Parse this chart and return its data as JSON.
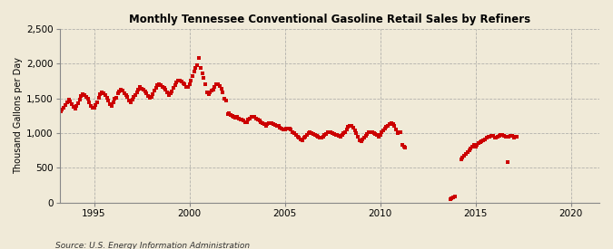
{
  "title": "Monthly Tennessee Conventional Gasoline Retail Sales by Refiners",
  "ylabel": "Thousand Gallons per Day",
  "source": "Source: U.S. Energy Information Administration",
  "background_color": "#f0ead8",
  "marker_color": "#cc0000",
  "xlim": [
    1993.2,
    2021.5
  ],
  "ylim": [
    0,
    2500
  ],
  "yticks": [
    0,
    500,
    1000,
    1500,
    2000,
    2500
  ],
  "xticks": [
    1995,
    2000,
    2005,
    2010,
    2015,
    2020
  ],
  "segments": [
    {
      "dates": [
        1993.25,
        1993.33,
        1993.42,
        1993.5,
        1993.58,
        1993.67,
        1993.75,
        1993.83,
        1993.92,
        1994.0,
        1994.08,
        1994.17,
        1994.25,
        1994.33,
        1994.42,
        1994.5,
        1994.58,
        1994.67,
        1994.75,
        1994.83,
        1994.92,
        1995.0,
        1995.08,
        1995.17,
        1995.25,
        1995.33,
        1995.42,
        1995.5,
        1995.58,
        1995.67,
        1995.75,
        1995.83,
        1995.92,
        1996.0,
        1996.08,
        1996.17,
        1996.25,
        1996.33,
        1996.42,
        1996.5,
        1996.58,
        1996.67,
        1996.75,
        1996.83,
        1996.92,
        1997.0,
        1997.08,
        1997.17,
        1997.25,
        1997.33,
        1997.42,
        1997.5,
        1997.58,
        1997.67,
        1997.75,
        1997.83,
        1997.92,
        1998.0,
        1998.08,
        1998.17,
        1998.25,
        1998.33,
        1998.42,
        1998.5,
        1998.58,
        1998.67,
        1998.75,
        1998.83,
        1998.92,
        1999.0,
        1999.08,
        1999.17,
        1999.25,
        1999.33,
        1999.42,
        1999.5,
        1999.58,
        1999.67,
        1999.75,
        1999.83,
        1999.92,
        2000.0,
        2000.08,
        2000.17,
        2000.25,
        2000.33,
        2000.42,
        2000.5,
        2000.58,
        2000.67,
        2000.75,
        2000.83,
        2000.92,
        2001.0,
        2001.08,
        2001.17,
        2001.25,
        2001.33,
        2001.42,
        2001.5,
        2001.58,
        2001.67,
        2001.75,
        2001.83,
        2001.92,
        2002.0,
        2002.08,
        2002.17,
        2002.25,
        2002.33,
        2002.42,
        2002.5,
        2002.58,
        2002.67,
        2002.75,
        2002.83,
        2002.92,
        2003.0,
        2003.08,
        2003.17,
        2003.25,
        2003.33,
        2003.42,
        2003.5,
        2003.58,
        2003.67,
        2003.75,
        2003.83,
        2003.92,
        2004.0,
        2004.08,
        2004.17,
        2004.25,
        2004.33,
        2004.42,
        2004.5,
        2004.58,
        2004.67,
        2004.75,
        2004.83,
        2004.92,
        2005.0,
        2005.08,
        2005.17,
        2005.25,
        2005.33,
        2005.42,
        2005.5,
        2005.58,
        2005.67,
        2005.75,
        2005.83,
        2005.92,
        2006.0,
        2006.08,
        2006.17,
        2006.25,
        2006.33,
        2006.42,
        2006.5,
        2006.58,
        2006.67,
        2006.75,
        2006.83,
        2006.92,
        2007.0,
        2007.08,
        2007.17,
        2007.25,
        2007.33,
        2007.42,
        2007.5,
        2007.58,
        2007.67,
        2007.75,
        2007.83,
        2007.92,
        2008.0,
        2008.08,
        2008.17,
        2008.25,
        2008.33,
        2008.42,
        2008.5,
        2008.58,
        2008.67,
        2008.75,
        2008.83,
        2008.92,
        2009.0,
        2009.08,
        2009.17,
        2009.25,
        2009.33,
        2009.42,
        2009.5,
        2009.58,
        2009.67,
        2009.75,
        2009.83,
        2009.92,
        2010.0,
        2010.08,
        2010.17,
        2010.25,
        2010.33,
        2010.42,
        2010.5,
        2010.58,
        2010.67,
        2010.75,
        2010.83,
        2010.92,
        2011.0,
        2011.08,
        2011.17,
        2011.25,
        2011.33
      ],
      "values": [
        1320,
        1340,
        1370,
        1400,
        1450,
        1480,
        1460,
        1420,
        1380,
        1350,
        1390,
        1430,
        1480,
        1530,
        1560,
        1550,
        1520,
        1490,
        1440,
        1390,
        1360,
        1370,
        1400,
        1450,
        1510,
        1560,
        1590,
        1570,
        1550,
        1510,
        1470,
        1420,
        1390,
        1440,
        1490,
        1510,
        1570,
        1600,
        1630,
        1610,
        1580,
        1550,
        1520,
        1470,
        1450,
        1480,
        1520,
        1550,
        1590,
        1630,
        1660,
        1640,
        1620,
        1600,
        1580,
        1540,
        1510,
        1520,
        1560,
        1610,
        1650,
        1690,
        1710,
        1690,
        1670,
        1650,
        1630,
        1590,
        1550,
        1570,
        1600,
        1650,
        1690,
        1730,
        1760,
        1760,
        1740,
        1720,
        1700,
        1670,
        1660,
        1710,
        1760,
        1820,
        1890,
        1940,
        1980,
        2080,
        1940,
        1860,
        1800,
        1700,
        1590,
        1560,
        1590,
        1610,
        1630,
        1670,
        1700,
        1700,
        1680,
        1640,
        1590,
        1490,
        1470,
        1270,
        1290,
        1260,
        1250,
        1230,
        1220,
        1230,
        1210,
        1200,
        1190,
        1180,
        1160,
        1160,
        1190,
        1210,
        1230,
        1240,
        1230,
        1210,
        1200,
        1180,
        1160,
        1140,
        1130,
        1110,
        1130,
        1140,
        1140,
        1150,
        1130,
        1120,
        1110,
        1100,
        1080,
        1060,
        1050,
        1050,
        1060,
        1070,
        1060,
        1050,
        1020,
        1000,
        970,
        950,
        930,
        910,
        900,
        940,
        950,
        970,
        1000,
        1010,
        1000,
        990,
        970,
        960,
        950,
        940,
        930,
        950,
        970,
        990,
        1010,
        1020,
        1010,
        1000,
        990,
        980,
        970,
        960,
        950,
        980,
        1000,
        1020,
        1050,
        1090,
        1110,
        1100,
        1080,
        1040,
        1000,
        950,
        900,
        880,
        910,
        940,
        960,
        990,
        1010,
        1020,
        1010,
        1000,
        990,
        970,
        950,
        980,
        1010,
        1040,
        1070,
        1090,
        1110,
        1130,
        1150,
        1130,
        1100,
        1050,
        1000,
        1010,
        1020,
        830,
        800,
        790
      ]
    },
    {
      "dates": [
        2013.67,
        2013.75,
        2013.83,
        2013.92
      ],
      "values": [
        55,
        65,
        80,
        90
      ]
    },
    {
      "dates": [
        2014.25,
        2014.33,
        2014.42,
        2014.5,
        2014.58,
        2014.67,
        2014.75,
        2014.83,
        2014.92,
        2015.0,
        2015.08,
        2015.17,
        2015.25,
        2015.33,
        2015.42,
        2015.5,
        2015.58,
        2015.67,
        2015.75,
        2015.83,
        2015.92,
        2016.0,
        2016.08,
        2016.17,
        2016.25,
        2016.33,
        2016.42,
        2016.5,
        2016.58,
        2016.67,
        2016.75,
        2016.83,
        2016.92,
        2017.0,
        2017.08,
        2017.17
      ],
      "values": [
        620,
        650,
        670,
        700,
        730,
        750,
        780,
        810,
        830,
        810,
        830,
        855,
        870,
        880,
        900,
        915,
        930,
        945,
        950,
        960,
        965,
        930,
        940,
        950,
        960,
        970,
        975,
        965,
        955,
        590,
        950,
        960,
        965,
        935,
        945,
        950
      ]
    }
  ]
}
